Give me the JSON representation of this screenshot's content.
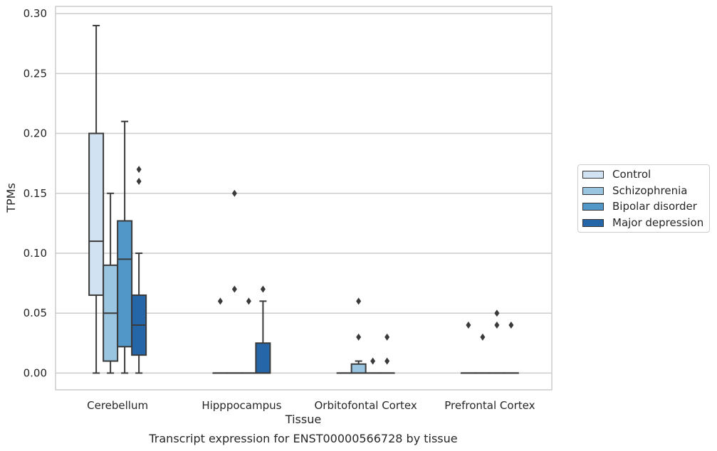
{
  "chart_data": {
    "type": "box",
    "title": "Transcript expression for ENST00000566728 by tissue",
    "xlabel": "Tissue",
    "ylabel": "TPMs",
    "ylim": [
      -0.014,
      0.306
    ],
    "yticks": [
      0.0,
      0.05,
      0.1,
      0.15,
      0.2,
      0.25,
      0.3
    ],
    "ytick_labels": [
      "0.00",
      "0.05",
      "0.10",
      "0.15",
      "0.20",
      "0.25",
      "0.30"
    ],
    "grid": "horizontal",
    "legend_position": "right",
    "categories": [
      "Cerebellum",
      "Hipppocampus",
      "Orbitofontal Cortex",
      "Prefrontal Cortex"
    ],
    "series": [
      {
        "name": "Control",
        "color": "#d1e2f2",
        "boxes": [
          {
            "whislo": 0.0,
            "q1": 0.065,
            "med": 0.11,
            "q3": 0.2,
            "whishi": 0.29,
            "fliers": []
          },
          {
            "whislo": 0.0,
            "q1": 0.0,
            "med": 0.0,
            "q3": 0.0,
            "whishi": 0.0,
            "fliers": [
              0.06
            ]
          },
          {
            "whislo": 0.0,
            "q1": 0.0,
            "med": 0.0,
            "q3": 0.0,
            "whishi": 0.0,
            "fliers": []
          },
          {
            "whislo": 0.0,
            "q1": 0.0,
            "med": 0.0,
            "q3": 0.0,
            "whishi": 0.0,
            "fliers": [
              0.04
            ]
          }
        ]
      },
      {
        "name": "Schizophrenia",
        "color": "#9ac5e0",
        "boxes": [
          {
            "whislo": 0.0,
            "q1": 0.01,
            "med": 0.05,
            "q3": 0.09,
            "whishi": 0.15,
            "fliers": []
          },
          {
            "whislo": 0.0,
            "q1": 0.0,
            "med": 0.0,
            "q3": 0.0,
            "whishi": 0.0,
            "fliers": [
              0.15,
              0.07
            ]
          },
          {
            "whislo": 0.0,
            "q1": 0.0,
            "med": 0.0,
            "q3": 0.0075,
            "whishi": 0.01,
            "fliers": [
              0.06,
              0.03
            ]
          },
          {
            "whislo": 0.0,
            "q1": 0.0,
            "med": 0.0,
            "q3": 0.0,
            "whishi": 0.0,
            "fliers": [
              0.03
            ]
          }
        ]
      },
      {
        "name": "Bipolar disorder",
        "color": "#5198c9",
        "boxes": [
          {
            "whislo": 0.0,
            "q1": 0.022,
            "med": 0.095,
            "q3": 0.127,
            "whishi": 0.21,
            "fliers": []
          },
          {
            "whislo": 0.0,
            "q1": 0.0,
            "med": 0.0,
            "q3": 0.0,
            "whishi": 0.0,
            "fliers": [
              0.06
            ]
          },
          {
            "whislo": 0.0,
            "q1": 0.0,
            "med": 0.0,
            "q3": 0.0,
            "whishi": 0.0,
            "fliers": [
              0.01
            ]
          },
          {
            "whislo": 0.0,
            "q1": 0.0,
            "med": 0.0,
            "q3": 0.0,
            "whishi": 0.0,
            "fliers": [
              0.05,
              0.04
            ]
          }
        ]
      },
      {
        "name": "Major depression",
        "color": "#2566a8",
        "boxes": [
          {
            "whislo": 0.0,
            "q1": 0.015,
            "med": 0.04,
            "q3": 0.065,
            "whishi": 0.1,
            "fliers": [
              0.17,
              0.16
            ]
          },
          {
            "whislo": 0.0,
            "q1": 0.0,
            "med": 0.0,
            "q3": 0.025,
            "whishi": 0.06,
            "fliers": [
              0.07
            ]
          },
          {
            "whislo": 0.0,
            "q1": 0.0,
            "med": 0.0,
            "q3": 0.0,
            "whishi": 0.0,
            "fliers": [
              0.03,
              0.01
            ]
          },
          {
            "whislo": 0.0,
            "q1": 0.0,
            "med": 0.0,
            "q3": 0.0,
            "whishi": 0.0,
            "fliers": [
              0.04
            ]
          }
        ]
      }
    ]
  }
}
